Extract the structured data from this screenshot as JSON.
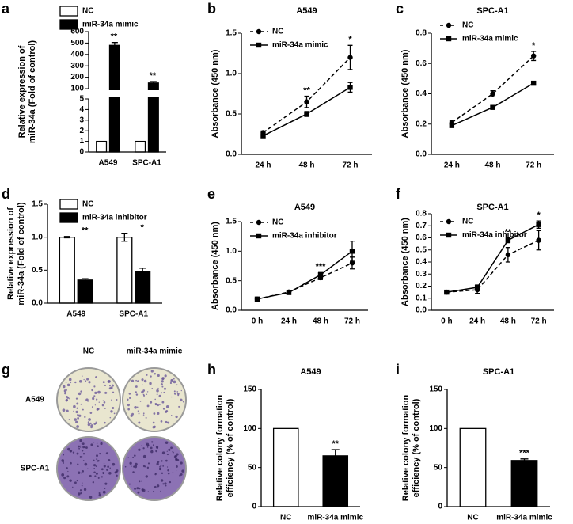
{
  "chart_data": [
    {
      "type": "bar",
      "panel": "a",
      "ylabel": [
        "Relative expression of",
        "miR-34a (Fold of control)"
      ],
      "categories": [
        "A549",
        "SPC-A1"
      ],
      "series": [
        {
          "name": "NC",
          "color": "#ffffff",
          "values": [
            1,
            1
          ]
        },
        {
          "name": "miR-34a mimic",
          "color": "#000000",
          "values": [
            480,
            150
          ],
          "errors": [
            25,
            12
          ]
        }
      ],
      "ylim": [
        0,
        600
      ],
      "ybreak": [
        5,
        100
      ],
      "yticks": [
        0,
        1,
        2,
        3,
        4,
        5,
        100,
        200,
        300,
        400,
        500,
        600
      ],
      "annotations": [
        "**",
        "**"
      ]
    },
    {
      "type": "line",
      "panel": "b",
      "title": "A549",
      "ylabel": [
        "Absorbance (450 nm)"
      ],
      "categories": [
        "24 h",
        "48 h",
        "72 h"
      ],
      "series": [
        {
          "name": "NC",
          "color": "#000000",
          "style": "dashed",
          "marker": "circle",
          "values": [
            0.27,
            0.65,
            1.2
          ],
          "errors": [
            0.02,
            0.07,
            0.15
          ]
        },
        {
          "name": "miR-34a mimic",
          "color": "#000000",
          "style": "solid",
          "marker": "square",
          "values": [
            0.23,
            0.5,
            0.83
          ],
          "errors": [
            0.02,
            0.03,
            0.06
          ]
        }
      ],
      "ylim": [
        0,
        1.5
      ],
      "yticks": [
        {
          "value": 0,
          "label": "0.0"
        },
        {
          "value": 0.5,
          "label": "0.5"
        },
        {
          "value": 1,
          "label": "1.0"
        },
        {
          "value": 1.5,
          "label": "1.5"
        }
      ],
      "annotations": [
        null,
        "**",
        "*"
      ]
    },
    {
      "type": "line",
      "panel": "c",
      "title": "SPC-A1",
      "ylabel": [
        "Absorbance (450 nm)"
      ],
      "categories": [
        "24 h",
        "48 h",
        "72 h"
      ],
      "series": [
        {
          "name": "NC",
          "color": "#000000",
          "style": "dashed",
          "marker": "circle",
          "values": [
            0.21,
            0.4,
            0.65
          ],
          "errors": [
            0.01,
            0.02,
            0.03
          ]
        },
        {
          "name": "miR-34a mimic",
          "color": "#000000",
          "style": "solid",
          "marker": "square",
          "values": [
            0.19,
            0.31,
            0.47
          ],
          "errors": [
            0.01,
            0.01,
            0.01
          ]
        }
      ],
      "ylim": [
        0,
        0.8
      ],
      "yticks": [
        {
          "value": 0,
          "label": "0.0"
        },
        0.2,
        0.4,
        0.6,
        0.8
      ],
      "annotations": [
        null,
        null,
        "*"
      ]
    },
    {
      "type": "bar",
      "panel": "d",
      "ylabel": [
        "Relative expression of",
        "miR-34a (Fold of control)"
      ],
      "categories": [
        "A549",
        "SPC-A1"
      ],
      "series": [
        {
          "name": "NC",
          "color": "#ffffff",
          "values": [
            1.0,
            1.0
          ],
          "errors": [
            0.01,
            0.06
          ]
        },
        {
          "name": "miR-34a inhibitor",
          "color": "#000000",
          "values": [
            0.35,
            0.48
          ],
          "errors": [
            0.02,
            0.05
          ]
        }
      ],
      "ylim": [
        0,
        1.5
      ],
      "yticks": [
        {
          "value": 0,
          "label": "0.0"
        },
        0.5,
        {
          "value": 1,
          "label": "1.0"
        },
        1.5
      ],
      "annotations": [
        "**",
        "*"
      ]
    },
    {
      "type": "line",
      "panel": "e",
      "title": "A549",
      "ylabel": [
        "Absorbance (450 nm)"
      ],
      "categories": [
        "0 h",
        "24 h",
        "48 h",
        "72 h"
      ],
      "series": [
        {
          "name": "NC",
          "color": "#000000",
          "style": "dashed",
          "marker": "circle",
          "values": [
            0.19,
            0.31,
            0.55,
            0.8
          ],
          "errors": [
            0.01,
            0.02,
            0.03,
            0.1
          ]
        },
        {
          "name": "miR-34a inhibitor",
          "color": "#000000",
          "style": "solid",
          "marker": "square",
          "values": [
            0.19,
            0.3,
            0.6,
            1.0
          ],
          "errors": [
            0.01,
            0.02,
            0.04,
            0.17
          ]
        }
      ],
      "ylim": [
        0,
        1.5
      ],
      "yticks": [
        {
          "value": 0,
          "label": "0.0"
        },
        0.5,
        {
          "value": 1,
          "label": "1.0"
        },
        1.5
      ],
      "annotations": [
        null,
        null,
        "***",
        null
      ]
    },
    {
      "type": "line",
      "panel": "f",
      "title": "SPC-A1",
      "ylabel": [
        "Absorbance (450 nm)"
      ],
      "categories": [
        "0 h",
        "24 h",
        "48 h",
        "72 h"
      ],
      "series": [
        {
          "name": "NC",
          "color": "#000000",
          "style": "dashed",
          "marker": "circle",
          "values": [
            0.15,
            0.17,
            0.46,
            0.58
          ],
          "errors": [
            0.01,
            0.03,
            0.06,
            0.08
          ]
        },
        {
          "name": "miR-34a inhibitor",
          "color": "#000000",
          "style": "solid",
          "marker": "square",
          "values": [
            0.15,
            0.19,
            0.58,
            0.71
          ],
          "errors": [
            0.01,
            0.02,
            0.02,
            0.03
          ]
        }
      ],
      "ylim": [
        0,
        0.8
      ],
      "yticks": [
        {
          "value": 0,
          "label": "0.0"
        },
        0.1,
        0.2,
        0.3,
        0.4,
        0.5,
        0.6,
        0.7,
        0.8
      ],
      "annotations": [
        null,
        null,
        "**",
        "*"
      ]
    },
    {
      "type": "image",
      "panel": "g",
      "columns": [
        "NC",
        "miR-34a mimic"
      ],
      "rows": [
        "A549",
        "SPC-A1"
      ]
    },
    {
      "type": "bar",
      "panel": "h",
      "title": "A549",
      "ylabel": [
        "Relative colony formation",
        "efficiency (% of control)"
      ],
      "categories": [
        "NC",
        "miR-34a mimic"
      ],
      "values": [
        100,
        65
      ],
      "errors": [
        null,
        8
      ],
      "colors": [
        "#ffffff",
        "#000000"
      ],
      "ylim": [
        0,
        150
      ],
      "yticks": [
        0,
        50,
        100,
        150
      ],
      "annotations": [
        null,
        "**"
      ]
    },
    {
      "type": "bar",
      "panel": "i",
      "title": "SPC-A1",
      "ylabel": [
        "Relative colony formation",
        "efficiency (% of control)"
      ],
      "categories": [
        "NC",
        "miR-34a mimic"
      ],
      "values": [
        100,
        59
      ],
      "errors": [
        null,
        2
      ],
      "colors": [
        "#ffffff",
        "#000000"
      ],
      "ylim": [
        0,
        150
      ],
      "yticks": [
        0,
        50,
        100,
        150
      ],
      "annotations": [
        null,
        "***"
      ]
    }
  ]
}
